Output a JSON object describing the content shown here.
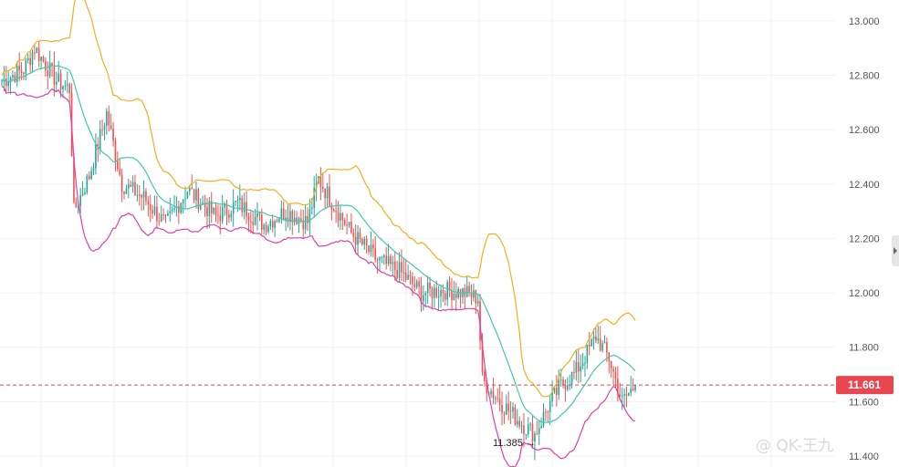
{
  "chart_data": {
    "type": "candlestick",
    "title": "",
    "ylim": [
      11.4,
      13.07
    ],
    "y_ticks": [
      "13.000",
      "12.800",
      "12.600",
      "12.400",
      "12.200",
      "12.000",
      "11.800",
      "11.600",
      "11.400"
    ],
    "grid": true,
    "current_price": {
      "label": "11.661",
      "value": 11.661
    },
    "low_marker": {
      "label": "11.385 →",
      "value": 11.385
    },
    "indicators": [
      "Bollinger upper",
      "Bollinger middle",
      "Bollinger lower"
    ],
    "trend_anchors": [
      {
        "x": 0,
        "y": 12.78
      },
      {
        "x": 10,
        "y": 12.82
      },
      {
        "x": 15,
        "y": 12.9
      },
      {
        "x": 25,
        "y": 12.78
      },
      {
        "x": 31,
        "y": 12.75
      },
      {
        "x": 33,
        "y": 12.3
      },
      {
        "x": 40,
        "y": 12.43
      },
      {
        "x": 48,
        "y": 12.66
      },
      {
        "x": 55,
        "y": 12.4
      },
      {
        "x": 65,
        "y": 12.35
      },
      {
        "x": 75,
        "y": 12.25
      },
      {
        "x": 85,
        "y": 12.38
      },
      {
        "x": 98,
        "y": 12.28
      },
      {
        "x": 108,
        "y": 12.33
      },
      {
        "x": 120,
        "y": 12.25
      },
      {
        "x": 130,
        "y": 12.3
      },
      {
        "x": 140,
        "y": 12.26
      },
      {
        "x": 145,
        "y": 12.42
      },
      {
        "x": 150,
        "y": 12.35
      },
      {
        "x": 160,
        "y": 12.22
      },
      {
        "x": 172,
        "y": 12.12
      },
      {
        "x": 182,
        "y": 12.08
      },
      {
        "x": 192,
        "y": 12.0
      },
      {
        "x": 202,
        "y": 12.01
      },
      {
        "x": 212,
        "y": 12.0
      },
      {
        "x": 218,
        "y": 11.98
      },
      {
        "x": 220,
        "y": 11.68
      },
      {
        "x": 228,
        "y": 11.6
      },
      {
        "x": 238,
        "y": 11.52
      },
      {
        "x": 244,
        "y": 11.48
      },
      {
        "x": 250,
        "y": 11.58
      },
      {
        "x": 256,
        "y": 11.66
      },
      {
        "x": 262,
        "y": 11.7
      },
      {
        "x": 268,
        "y": 11.78
      },
      {
        "x": 272,
        "y": 11.84
      },
      {
        "x": 278,
        "y": 11.76
      },
      {
        "x": 284,
        "y": 11.6
      },
      {
        "x": 290,
        "y": 11.66
      }
    ]
  },
  "price_label": {
    "text": "11.661",
    "color": "#e8474f"
  },
  "watermark": {
    "text": "@ QK-王九"
  },
  "colors": {
    "up": "#26a69a",
    "down": "#ef5350",
    "upper_band": "#f0b020",
    "middle_band": "#40c8b0",
    "lower_band": "#e040a8"
  }
}
